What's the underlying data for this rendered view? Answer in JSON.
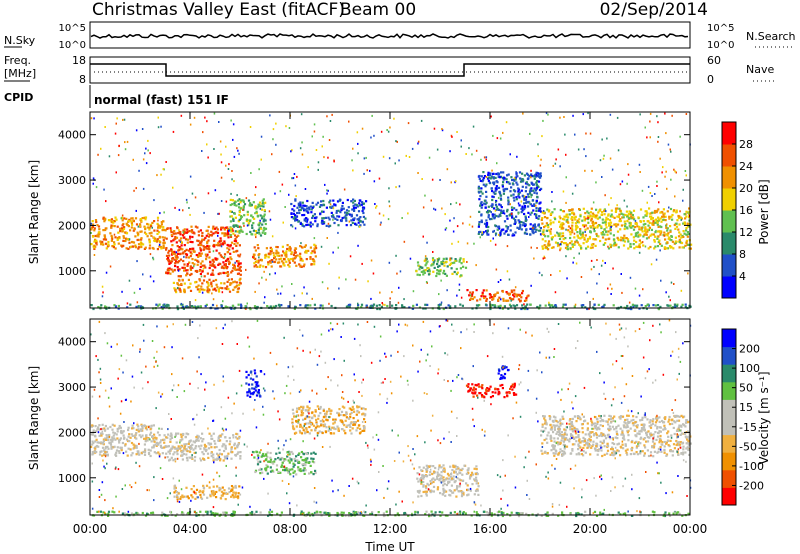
{
  "header": {
    "station": "Christmas Valley East (fitACF)",
    "beam": "Beam 00",
    "date": "02/Sep/2014"
  },
  "top_panels": {
    "nsky_label": "N.Sky",
    "nsky_ticks": [
      "10^5",
      "10^0"
    ],
    "nsearch_label": "N.Search",
    "nsearch_ticks": [
      "10^5",
      "10^0"
    ],
    "freq_label": "Freq.",
    "freq_unit": "[MHz]",
    "freq_ticks": [
      "18",
      "8"
    ],
    "nave_label": "Nave",
    "nave_ticks": [
      "60",
      "0"
    ],
    "cpid_label": "CPID",
    "cpid_text": "normal (fast) 151 IF"
  },
  "chart_data": [
    {
      "type": "heatmap",
      "name": "power-panel",
      "ylabel": "Slant Range [km]",
      "y_ticks": [
        "4000",
        "3000",
        "2000",
        "1000"
      ],
      "ylim": [
        180,
        4500
      ],
      "colorbar_label": "Power [dB]",
      "colorbar_ticks": [
        "28",
        "24",
        "20",
        "16",
        "12",
        "8",
        "4"
      ],
      "colors": [
        "#0000ff",
        "#2050c8",
        "#2a8a6a",
        "#60c050",
        "#f0d000",
        "#f09000",
        "#f05000",
        "#ff0000"
      ],
      "x_ticks": [
        "00:00",
        "04:00",
        "08:00",
        "12:00",
        "16:00",
        "20:00",
        "00:00"
      ],
      "xlim_hours": [
        0,
        24
      ],
      "regions": [
        {
          "t0": 0.0,
          "t1": 3.0,
          "r0": 1500,
          "r1": 2200,
          "level": 5
        },
        {
          "t0": 3.0,
          "t1": 6.0,
          "r0": 900,
          "r1": 2000,
          "level": 6
        },
        {
          "t0": 3.3,
          "t1": 6.0,
          "r0": 550,
          "r1": 850,
          "level": 5
        },
        {
          "t0": 6.5,
          "t1": 9.0,
          "r0": 1100,
          "r1": 1600,
          "level": 5
        },
        {
          "t0": 5.5,
          "t1": 7.0,
          "r0": 1800,
          "r1": 2600,
          "level": 3
        },
        {
          "t0": 8.0,
          "t1": 11.0,
          "r0": 2000,
          "r1": 2600,
          "level": 1
        },
        {
          "t0": 13.0,
          "t1": 15.0,
          "r0": 900,
          "r1": 1300,
          "level": 3
        },
        {
          "t0": 15.0,
          "t1": 17.5,
          "r0": 350,
          "r1": 600,
          "level": 6
        },
        {
          "t0": 15.5,
          "t1": 18.0,
          "r0": 1800,
          "r1": 3200,
          "level": 1
        },
        {
          "t0": 18.0,
          "t1": 24.0,
          "r0": 1500,
          "r1": 2400,
          "level": 4
        },
        {
          "t0": 0.0,
          "t1": 24.0,
          "r0": 180,
          "r1": 280,
          "level": 2
        }
      ]
    },
    {
      "type": "heatmap",
      "name": "velocity-panel",
      "ylabel": "Slant Range [km]",
      "y_ticks": [
        "4000",
        "3000",
        "2000",
        "1000"
      ],
      "ylim": [
        180,
        4500
      ],
      "colorbar_label": "Velocity [m s⁻¹]",
      "colorbar_ticks": [
        "200",
        "100",
        "50",
        "15",
        "-15",
        "-50",
        "-100",
        "-200"
      ],
      "colors": [
        "#ff0000",
        "#f05000",
        "#f09000",
        "#f0b040",
        "#c0c0b8",
        "#c0c0b8",
        "#60c040",
        "#2a8a6a",
        "#2050c8",
        "#0000ff"
      ],
      "xlabel": "Time UT",
      "x_ticks": [
        "00:00",
        "04:00",
        "08:00",
        "12:00",
        "16:00",
        "20:00",
        "00:00"
      ],
      "xlim_hours": [
        0,
        24
      ],
      "regions": [
        {
          "t0": 0.0,
          "t1": 3.0,
          "r0": 1500,
          "r1": 2200,
          "level": 4
        },
        {
          "t0": 3.0,
          "t1": 6.0,
          "r0": 1400,
          "r1": 2000,
          "level": 4
        },
        {
          "t0": 3.3,
          "t1": 6.0,
          "r0": 550,
          "r1": 850,
          "level": 3
        },
        {
          "t0": 6.5,
          "t1": 9.0,
          "r0": 1100,
          "r1": 1600,
          "level": 6
        },
        {
          "t0": 6.2,
          "t1": 6.8,
          "r0": 2800,
          "r1": 3400,
          "level": 9
        },
        {
          "t0": 8.0,
          "t1": 11.0,
          "r0": 2000,
          "r1": 2600,
          "level": 3
        },
        {
          "t0": 13.0,
          "t1": 15.5,
          "r0": 600,
          "r1": 1300,
          "level": 4
        },
        {
          "t0": 15.0,
          "t1": 17.0,
          "r0": 2800,
          "r1": 3100,
          "level": 0
        },
        {
          "t0": 16.3,
          "t1": 16.7,
          "r0": 3200,
          "r1": 3500,
          "level": 9
        },
        {
          "t0": 18.0,
          "t1": 24.0,
          "r0": 1500,
          "r1": 2400,
          "level": 4
        },
        {
          "t0": 0.0,
          "t1": 24.0,
          "r0": 180,
          "r1": 280,
          "level": 6
        }
      ]
    }
  ]
}
